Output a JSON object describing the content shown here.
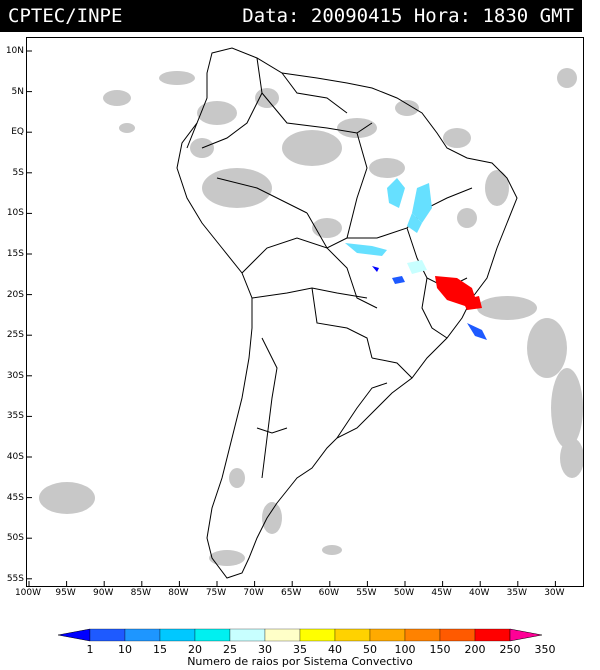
{
  "header": {
    "source": "CPTEC/INPE",
    "info": "Data: 20090415 Hora: 1830 GMT"
  },
  "latitude_labels": [
    "10N",
    "5N",
    "EQ",
    "5S",
    "10S",
    "15S",
    "20S",
    "25S",
    "30S",
    "35S",
    "40S",
    "45S",
    "50S",
    "55S"
  ],
  "longitude_labels": [
    "100W",
    "95W",
    "90W",
    "85W",
    "80W",
    "75W",
    "70W",
    "65W",
    "60W",
    "55W",
    "50W",
    "45W",
    "40W",
    "35W",
    "30W"
  ],
  "legend": {
    "title": "Numero de raios por Sistema Convectivo",
    "values": [
      "1",
      "10",
      "15",
      "20",
      "25",
      "30",
      "35",
      "40",
      "50",
      "100",
      "150",
      "200",
      "250",
      "350"
    ],
    "colors": [
      "#0000ff",
      "#1e5aff",
      "#1e96ff",
      "#00c8ff",
      "#00f0f0",
      "#c8ffff",
      "#ffffc8",
      "#ffff00",
      "#ffd200",
      "#ffaa00",
      "#ff8200",
      "#ff5a00",
      "#ff0000",
      "#ff0096"
    ]
  },
  "map": {
    "land_outline_color": "#000000",
    "cloud_color": "#c0c0c0"
  }
}
